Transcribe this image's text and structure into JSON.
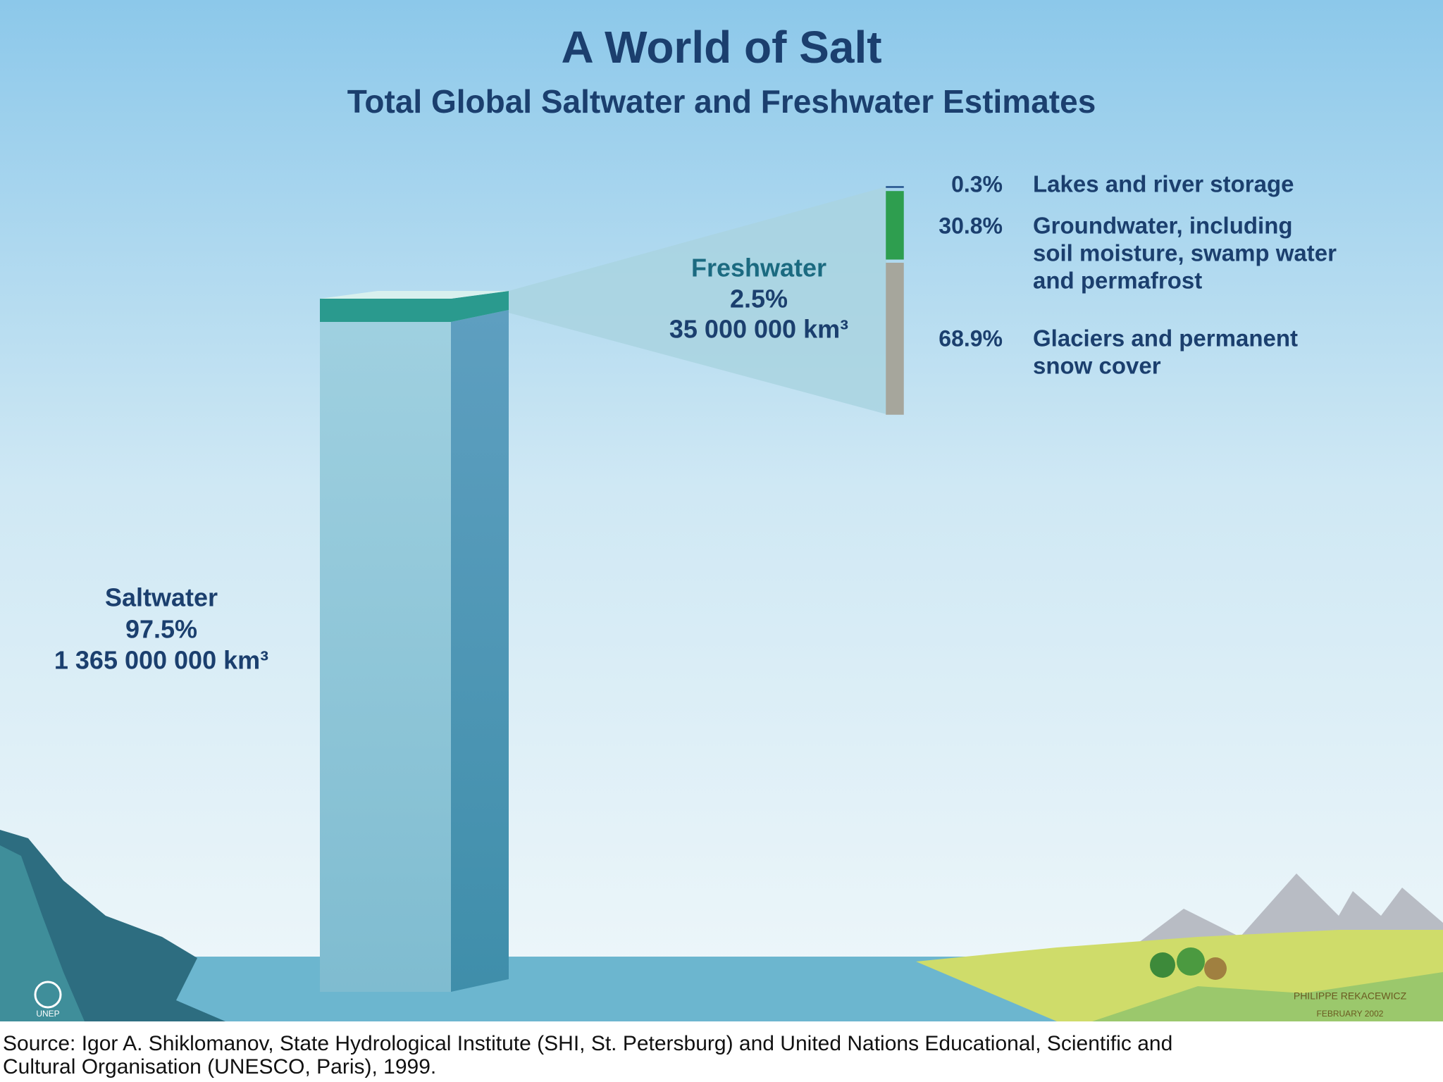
{
  "header": {
    "title": "A World of Salt",
    "subtitle": "Total Global Saltwater and Freshwater Estimates"
  },
  "saltwater": {
    "name": "Saltwater",
    "percent": 97.5,
    "percent_label": "97.5%",
    "volume": "1 365 000 000 km³"
  },
  "freshwater": {
    "name": "Freshwater",
    "percent": 2.5,
    "percent_label": "2.5%",
    "volume": "35 000 000 km³"
  },
  "freshwater_breakdown": [
    {
      "value": 0.3,
      "value_label": "0.3%",
      "label": [
        "Lakes and river storage"
      ],
      "color": "#1f4e8a"
    },
    {
      "value": 30.8,
      "value_label": "30.8%",
      "label": [
        "Groundwater, including",
        "soil moisture, swamp water",
        "and permafrost"
      ],
      "color": "#2e9e4f"
    },
    {
      "value": 68.9,
      "value_label": "68.9%",
      "label": [
        "Glaciers and permanent",
        "snow cover"
      ],
      "color": "#a6a69c"
    }
  ],
  "source": [
    "Source: Igor A. Shiklomanov, State Hydrological Institute (SHI, St. Petersburg) and United Nations Educational, Scientific and",
    "Cultural Organisation (UNESCO, Paris), 1999."
  ],
  "credit": [
    "PHILIPPE REKACEWICZ",
    "FEBRUARY 2002"
  ],
  "logo": "UNEP"
}
